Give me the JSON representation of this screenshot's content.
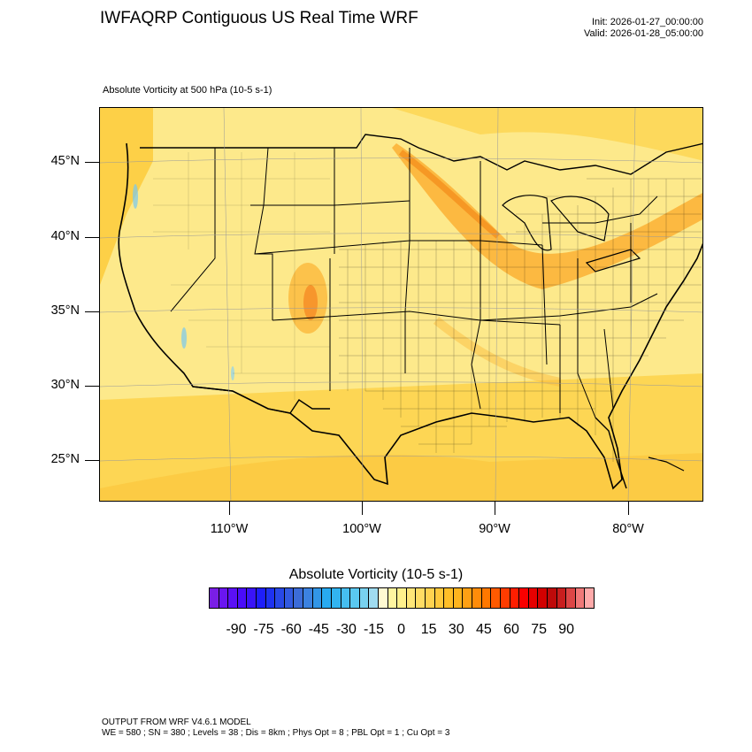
{
  "header": {
    "title": "IWFAQRP Contiguous US Real Time WRF",
    "init": "Init: 2026-01-27_00:00:00",
    "valid": "Valid: 2026-01-28_05:00:00"
  },
  "field_label": "Absolute Vorticity at 500 hPa   (10-5 s-1)",
  "map": {
    "lat_labels": [
      "45°N",
      "40°N",
      "35°N",
      "30°N",
      "25°N"
    ],
    "lon_labels": [
      "110°W",
      "100°W",
      "90°W",
      "80°W"
    ],
    "base_color": "#fde98b",
    "ocean_color": "#fdd94a"
  },
  "colorbar": {
    "title": "Absolute Vorticity  (10-5 s-1)",
    "tick_labels": [
      "-90",
      "-75",
      "-60",
      "-45",
      "-30",
      "-15",
      "0",
      "15",
      "30",
      "45",
      "60",
      "75",
      "90"
    ],
    "colors": [
      "#7a1ee6",
      "#6a16f0",
      "#5a10f5",
      "#4a0cfa",
      "#3a14f8",
      "#1e1efa",
      "#1e32f0",
      "#2848e6",
      "#325ae0",
      "#3c6cd8",
      "#3c82e0",
      "#3296e6",
      "#28aaf0",
      "#32b4f0",
      "#46bef0",
      "#5ac8f0",
      "#78d2f0",
      "#a0dcf0",
      "#fffad2",
      "#fff5a0",
      "#fff08c",
      "#ffe678",
      "#ffdc64",
      "#ffd250",
      "#ffc83c",
      "#ffbe28",
      "#ffb41e",
      "#ffa014",
      "#ff8c0a",
      "#ff7800",
      "#ff5a00",
      "#ff3c00",
      "#ff1e00",
      "#fa0000",
      "#e60000",
      "#d20000",
      "#be0a0a",
      "#c81e1e",
      "#dc4646",
      "#f07878",
      "#ffaaaa"
    ]
  },
  "footer": {
    "line1": "OUTPUT FROM WRF V4.6.1 MODEL",
    "line2": "WE = 580 ; SN = 380 ; Levels = 38 ; Dis = 8km ; Phys Opt = 8 ; PBL Opt = 1 ; Cu Opt = 3"
  }
}
